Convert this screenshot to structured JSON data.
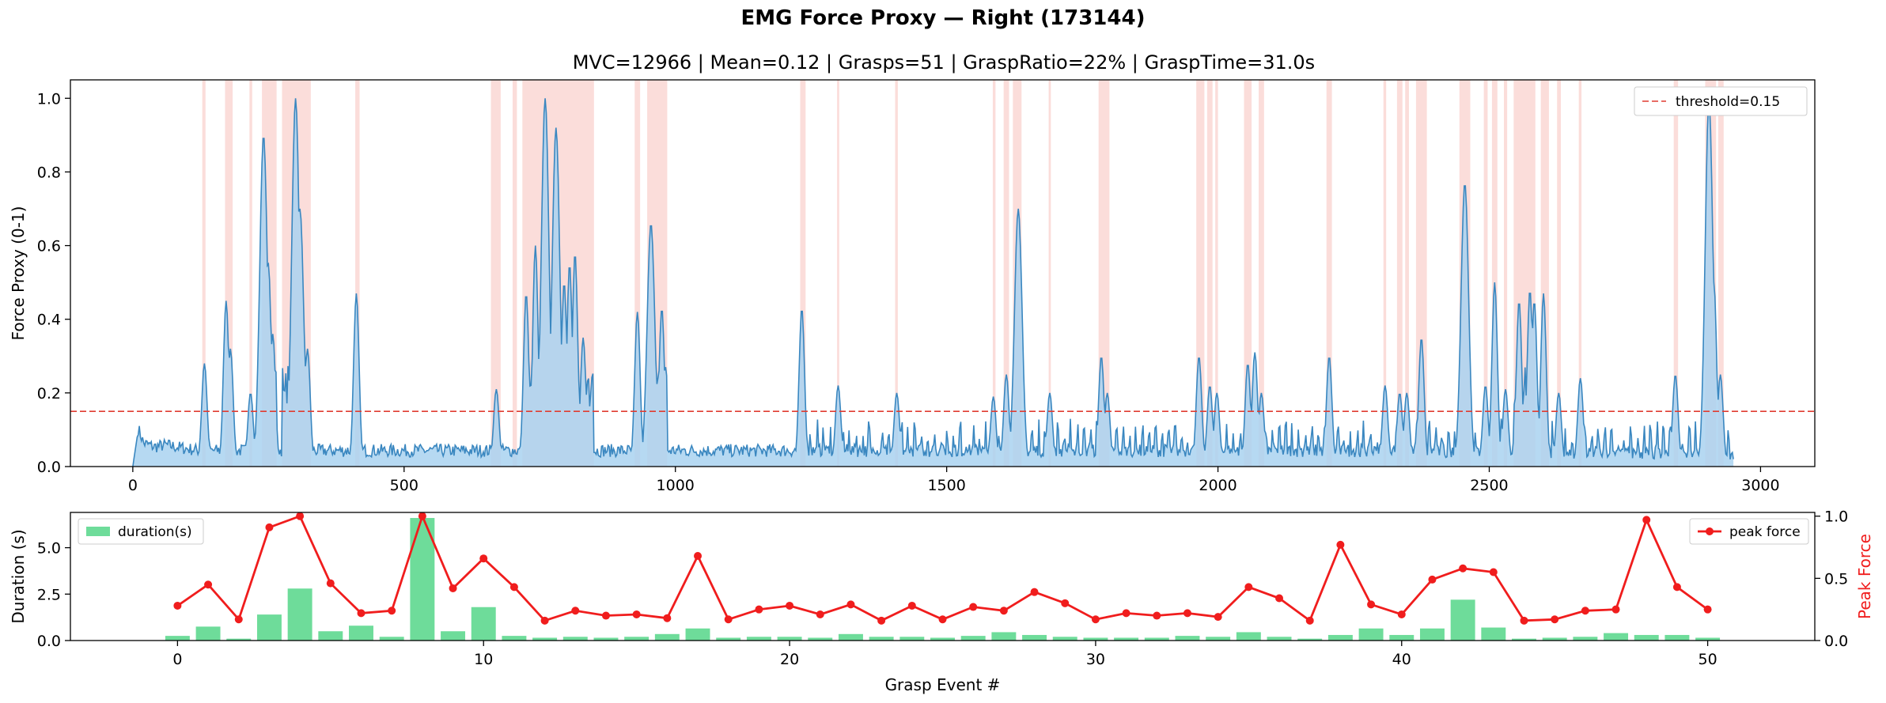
{
  "figure": {
    "suptitle": "EMG Force Proxy — Right (173144)"
  },
  "chart_data": [
    {
      "type": "area",
      "title": "MVC=12966 | Mean=0.12 | Grasps=51 | GraspRatio=22% | GraspTime=31.0s",
      "xlabel": "",
      "ylabel": "Force Proxy (0-1)",
      "xlim": [
        -115,
        3100
      ],
      "ylim": [
        0,
        1.05
      ],
      "xticks": [
        0,
        500,
        1000,
        1500,
        2000,
        2500,
        3000
      ],
      "yticks": [
        "0.0",
        "0.2",
        "0.4",
        "0.6",
        "0.8",
        "1.0"
      ],
      "threshold": {
        "value": 0.15,
        "label": "threshold=0.15",
        "color": "#e03c31"
      },
      "legend_position": "top-right",
      "signal_color": "#3a87c0",
      "fill_color": "#a9d2f0",
      "grasp_shade_color": "#f7b4ae",
      "baseline_samples": [
        [
          0,
          0.0
        ],
        [
          5,
          0.05
        ],
        [
          10,
          0.1
        ],
        [
          20,
          0.06
        ],
        [
          40,
          0.05
        ],
        [
          60,
          0.055
        ],
        [
          80,
          0.05
        ],
        [
          100,
          0.045
        ],
        [
          125,
          0.04
        ],
        [
          2300,
          0.04
        ],
        [
          2950,
          0.03
        ]
      ],
      "grasp_regions": [
        [
          128,
          134
        ],
        [
          170,
          184
        ],
        [
          215,
          220
        ],
        [
          238,
          265
        ],
        [
          275,
          328
        ],
        [
          410,
          418
        ],
        [
          660,
          678
        ],
        [
          700,
          708
        ],
        [
          718,
          850
        ],
        [
          925,
          935
        ],
        [
          948,
          985
        ],
        [
          1230,
          1240
        ],
        [
          1298,
          1302
        ],
        [
          1405,
          1410
        ],
        [
          1585,
          1590
        ],
        [
          1605,
          1615
        ],
        [
          1622,
          1638
        ],
        [
          1688,
          1692
        ],
        [
          1780,
          1800
        ],
        [
          1960,
          1975
        ],
        [
          1980,
          1990
        ],
        [
          1995,
          2000
        ],
        [
          2048,
          2062
        ],
        [
          2075,
          2085
        ],
        [
          2200,
          2210
        ],
        [
          2305,
          2310
        ],
        [
          2330,
          2340
        ],
        [
          2345,
          2352
        ],
        [
          2365,
          2385
        ],
        [
          2445,
          2465
        ],
        [
          2490,
          2497
        ],
        [
          2505,
          2515
        ],
        [
          2527,
          2533
        ],
        [
          2545,
          2585
        ],
        [
          2595,
          2610
        ],
        [
          2625,
          2632
        ],
        [
          2665,
          2670
        ],
        [
          2840,
          2848
        ],
        [
          2898,
          2918
        ],
        [
          2922,
          2932
        ]
      ],
      "peaks": [
        [
          132,
          0.28
        ],
        [
          172,
          0.45
        ],
        [
          180,
          0.32
        ],
        [
          217,
          0.2
        ],
        [
          241,
          0.9
        ],
        [
          250,
          0.55
        ],
        [
          258,
          0.36
        ],
        [
          300,
          1.0
        ],
        [
          308,
          0.7
        ],
        [
          322,
          0.32
        ],
        [
          412,
          0.47
        ],
        [
          670,
          0.21
        ],
        [
          725,
          0.47
        ],
        [
          742,
          0.6
        ],
        [
          760,
          1.0
        ],
        [
          780,
          0.92
        ],
        [
          795,
          0.5
        ],
        [
          805,
          0.55
        ],
        [
          815,
          0.58
        ],
        [
          830,
          0.35
        ],
        [
          930,
          0.42
        ],
        [
          955,
          0.66
        ],
        [
          975,
          0.43
        ],
        [
          1233,
          0.43
        ],
        [
          1300,
          0.22
        ],
        [
          1408,
          0.2
        ],
        [
          1586,
          0.19
        ],
        [
          1610,
          0.25
        ],
        [
          1632,
          0.7
        ],
        [
          1690,
          0.2
        ],
        [
          1785,
          0.3
        ],
        [
          1796,
          0.2
        ],
        [
          1965,
          0.3
        ],
        [
          1985,
          0.22
        ],
        [
          1998,
          0.2
        ],
        [
          2055,
          0.28
        ],
        [
          2068,
          0.31
        ],
        [
          2080,
          0.2
        ],
        [
          2205,
          0.3
        ],
        [
          2308,
          0.22
        ],
        [
          2335,
          0.2
        ],
        [
          2348,
          0.2
        ],
        [
          2375,
          0.35
        ],
        [
          2455,
          0.77
        ],
        [
          2460,
          0.45
        ],
        [
          2493,
          0.22
        ],
        [
          2510,
          0.5
        ],
        [
          2530,
          0.21
        ],
        [
          2555,
          0.45
        ],
        [
          2575,
          0.48
        ],
        [
          2583,
          0.45
        ],
        [
          2600,
          0.47
        ],
        [
          2628,
          0.2
        ],
        [
          2668,
          0.24
        ],
        [
          2843,
          0.25
        ],
        [
          2905,
          1.0
        ],
        [
          2914,
          0.5
        ],
        [
          2926,
          0.25
        ]
      ]
    },
    {
      "type": "bar",
      "title": "",
      "xlabel": "Grasp Event #",
      "ylabel": "Duration (s)",
      "ylabel_right": "Peak Force",
      "xlim": [
        -3.5,
        53.5
      ],
      "ylim": [
        0,
        6.9
      ],
      "ylim_right": [
        0,
        1.03
      ],
      "xticks": [
        0,
        10,
        20,
        30,
        40,
        50
      ],
      "yticks": [
        "0.0",
        "2.5",
        "5.0"
      ],
      "yticks_right": [
        "0.0",
        "0.5",
        "1.0"
      ],
      "legend_position": "top-left",
      "series": [
        {
          "name": "duration(s)",
          "kind": "bar",
          "color": "#6edc9a",
          "values": [
            0.25,
            0.75,
            0.1,
            1.4,
            2.8,
            0.5,
            0.8,
            0.2,
            6.6,
            0.5,
            1.8,
            0.25,
            0.15,
            0.2,
            0.15,
            0.2,
            0.35,
            0.65,
            0.15,
            0.2,
            0.2,
            0.15,
            0.35,
            0.2,
            0.2,
            0.15,
            0.25,
            0.45,
            0.3,
            0.2,
            0.15,
            0.15,
            0.15,
            0.25,
            0.2,
            0.45,
            0.2,
            0.1,
            0.3,
            0.65,
            0.3,
            0.65,
            2.2,
            0.7,
            0.1,
            0.15,
            0.2,
            0.4,
            0.3,
            0.3,
            0.15
          ]
        },
        {
          "name": "peak force",
          "kind": "line",
          "color": "#f01d1d",
          "values": [
            0.28,
            0.45,
            0.17,
            0.91,
            1.0,
            0.46,
            0.22,
            0.24,
            1.0,
            0.42,
            0.66,
            0.43,
            0.16,
            0.24,
            0.2,
            0.21,
            0.18,
            0.68,
            0.17,
            0.25,
            0.28,
            0.21,
            0.29,
            0.16,
            0.28,
            0.17,
            0.27,
            0.24,
            0.39,
            0.3,
            0.17,
            0.22,
            0.2,
            0.22,
            0.19,
            0.43,
            0.34,
            0.16,
            0.77,
            0.29,
            0.21,
            0.49,
            0.58,
            0.55,
            0.16,
            0.17,
            0.24,
            0.25,
            0.97,
            0.43,
            0.25
          ]
        }
      ]
    }
  ]
}
